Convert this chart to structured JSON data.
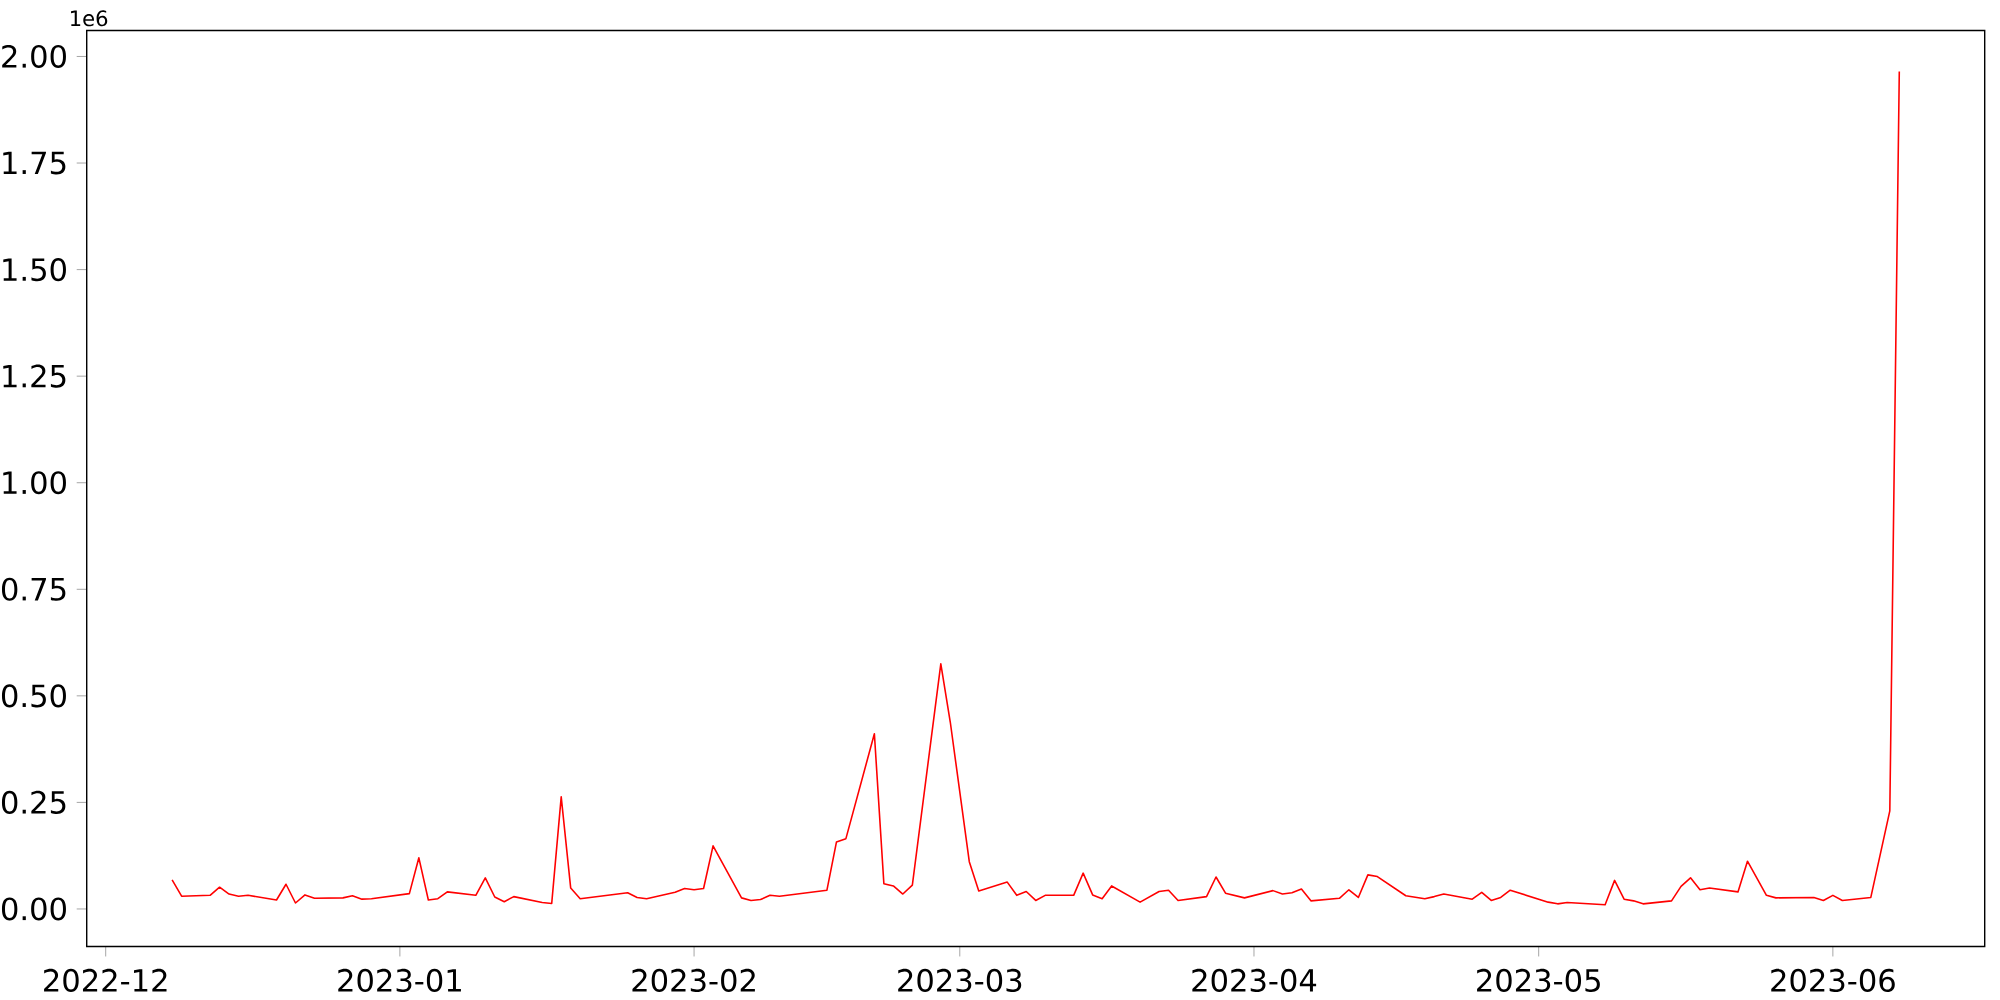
{
  "chart_data": {
    "type": "line",
    "color": "#ff0000",
    "x": [
      "2022-12-08",
      "2022-12-09",
      "2022-12-12",
      "2022-12-13",
      "2022-12-14",
      "2022-12-15",
      "2022-12-16",
      "2022-12-19",
      "2022-12-20",
      "2022-12-21",
      "2022-12-22",
      "2022-12-23",
      "2022-12-26",
      "2022-12-27",
      "2022-12-28",
      "2022-12-29",
      "2023-01-02",
      "2023-01-03",
      "2023-01-04",
      "2023-01-05",
      "2023-01-06",
      "2023-01-09",
      "2023-01-10",
      "2023-01-11",
      "2023-01-12",
      "2023-01-13",
      "2023-01-16",
      "2023-01-17",
      "2023-01-18",
      "2023-01-19",
      "2023-01-20",
      "2023-01-25",
      "2023-01-26",
      "2023-01-27",
      "2023-01-30",
      "2023-01-31",
      "2023-02-01",
      "2023-02-02",
      "2023-02-03",
      "2023-02-06",
      "2023-02-07",
      "2023-02-08",
      "2023-02-09",
      "2023-02-10",
      "2023-02-15",
      "2023-02-16",
      "2023-02-17",
      "2023-02-20",
      "2023-02-21",
      "2023-02-22",
      "2023-02-23",
      "2023-02-24",
      "2023-02-27",
      "2023-02-28",
      "2023-03-02",
      "2023-03-03",
      "2023-03-06",
      "2023-03-07",
      "2023-03-08",
      "2023-03-09",
      "2023-03-10",
      "2023-03-13",
      "2023-03-14",
      "2023-03-15",
      "2023-03-16",
      "2023-03-17",
      "2023-03-20",
      "2023-03-22",
      "2023-03-23",
      "2023-03-24",
      "2023-03-27",
      "2023-03-28",
      "2023-03-29",
      "2023-03-31",
      "2023-04-03",
      "2023-04-04",
      "2023-04-05",
      "2023-04-06",
      "2023-04-07",
      "2023-04-10",
      "2023-04-11",
      "2023-04-12",
      "2023-04-13",
      "2023-04-14",
      "2023-04-17",
      "2023-04-19",
      "2023-04-20",
      "2023-04-21",
      "2023-04-24",
      "2023-04-25",
      "2023-04-26",
      "2023-04-27",
      "2023-04-28",
      "2023-05-02",
      "2023-05-03",
      "2023-05-04",
      "2023-05-08",
      "2023-05-09",
      "2023-05-10",
      "2023-05-11",
      "2023-05-12",
      "2023-05-15",
      "2023-05-16",
      "2023-05-17",
      "2023-05-18",
      "2023-05-19",
      "2023-05-22",
      "2023-05-23",
      "2023-05-25",
      "2023-05-26",
      "2023-05-30",
      "2023-05-31",
      "2023-06-01",
      "2023-06-02",
      "2023-06-05",
      "2023-06-07",
      "2023-06-08"
    ],
    "values": [
      0.068,
      0.03,
      0.032,
      0.051,
      0.035,
      0.03,
      0.032,
      0.021,
      0.058,
      0.014,
      0.033,
      0.025,
      0.026,
      0.031,
      0.023,
      0.024,
      0.036,
      0.12,
      0.021,
      0.024,
      0.04,
      0.032,
      0.073,
      0.028,
      0.017,
      0.029,
      0.015,
      0.013,
      0.263,
      0.049,
      0.024,
      0.038,
      0.027,
      0.024,
      0.039,
      0.048,
      0.045,
      0.048,
      0.148,
      0.026,
      0.02,
      0.022,
      0.032,
      0.03,
      0.044,
      0.157,
      0.165,
      0.411,
      0.059,
      0.054,
      0.035,
      0.056,
      0.575,
      0.438,
      0.111,
      0.042,
      0.063,
      0.032,
      0.041,
      0.02,
      0.032,
      0.032,
      0.084,
      0.033,
      0.024,
      0.054,
      0.016,
      0.041,
      0.044,
      0.02,
      0.029,
      0.075,
      0.037,
      0.026,
      0.043,
      0.035,
      0.038,
      0.047,
      0.019,
      0.025,
      0.045,
      0.027,
      0.08,
      0.076,
      0.031,
      0.024,
      0.029,
      0.035,
      0.023,
      0.039,
      0.02,
      0.027,
      0.044,
      0.016,
      0.012,
      0.015,
      0.01,
      0.067,
      0.023,
      0.019,
      0.012,
      0.019,
      0.053,
      0.073,
      0.045,
      0.049,
      0.04,
      0.112,
      0.032,
      0.026,
      0.027,
      0.02,
      0.032,
      0.02,
      0.027,
      0.23,
      1.965
    ],
    "xlim": [
      "2022-11-29",
      "2023-06-17"
    ],
    "xticks": [
      {
        "value": "2022-12-01",
        "label": "2022-12"
      },
      {
        "value": "2023-01-01",
        "label": "2023-01"
      },
      {
        "value": "2023-02-01",
        "label": "2023-02"
      },
      {
        "value": "2023-03-01",
        "label": "2023-03"
      },
      {
        "value": "2023-04-01",
        "label": "2023-04"
      },
      {
        "value": "2023-05-01",
        "label": "2023-05"
      },
      {
        "value": "2023-06-01",
        "label": "2023-06"
      }
    ],
    "ylim": [
      -0.088,
      2.061
    ],
    "yticks": [
      {
        "value": 0,
        "label": "0.00"
      },
      {
        "value": 0.25,
        "label": "0.25"
      },
      {
        "value": 0.5,
        "label": "0.50"
      },
      {
        "value": 0.75,
        "label": "0.75"
      },
      {
        "value": 1.0,
        "label": "1.00"
      },
      {
        "value": 1.25,
        "label": "1.25"
      },
      {
        "value": 1.5,
        "label": "1.50"
      },
      {
        "value": 1.75,
        "label": "1.75"
      },
      {
        "value": 2.0,
        "label": "2.00"
      }
    ],
    "annotations": [
      "1e6"
    ]
  }
}
